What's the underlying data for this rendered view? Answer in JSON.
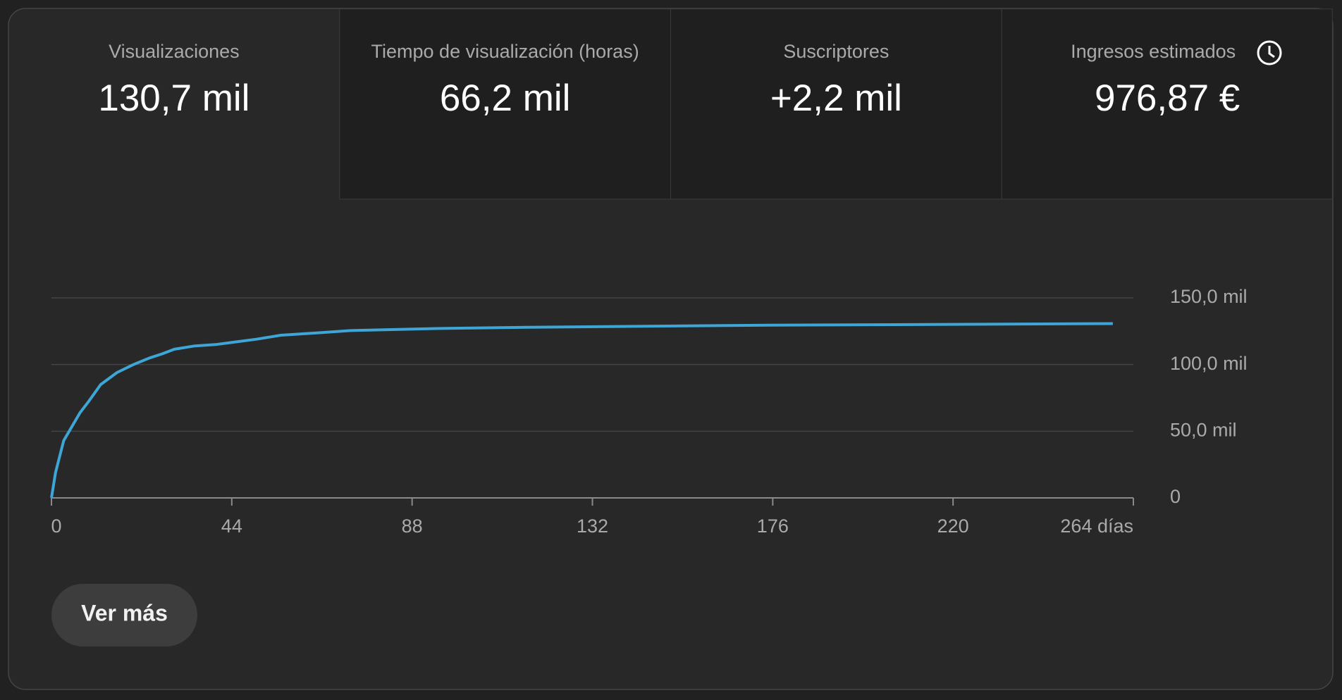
{
  "metrics": [
    {
      "label": "Visualizaciones",
      "value": "130,7 mil"
    },
    {
      "label": "Tiempo de visualización (horas)",
      "value": "66,2 mil"
    },
    {
      "label": "Suscriptores",
      "value": "+2,2 mil"
    },
    {
      "label": "Ingresos estimados",
      "value": "976,87 €"
    }
  ],
  "chart_data": {
    "type": "line",
    "x": [
      0,
      1,
      3,
      7,
      9,
      12,
      16,
      20,
      24,
      27,
      30,
      35,
      40,
      45,
      50,
      56,
      66,
      73,
      94,
      116,
      175,
      259
    ],
    "series": [
      {
        "color": "#3ea6d6",
        "values": [
          0,
          19000,
          43000,
          64000,
          72000,
          85000,
          94000,
          100000,
          105000,
          108000,
          111500,
          114000,
          115000,
          117000,
          119000,
          122000,
          124000,
          125500,
          127000,
          128000,
          129500,
          130700
        ]
      }
    ],
    "xlim": [
      0,
      264
    ],
    "xticks": [
      0,
      44,
      88,
      132,
      176,
      220,
      {
        "value": 264,
        "label": "264 días"
      }
    ],
    "ylim": [
      0,
      150000
    ],
    "yticks": [
      0,
      {
        "value": 50000,
        "label": "50,0 mil"
      },
      {
        "value": 100000,
        "label": "100,0 mil"
      },
      {
        "value": 150000,
        "label": "150,0 mil"
      }
    ],
    "grid": true
  },
  "button": "Ver más"
}
